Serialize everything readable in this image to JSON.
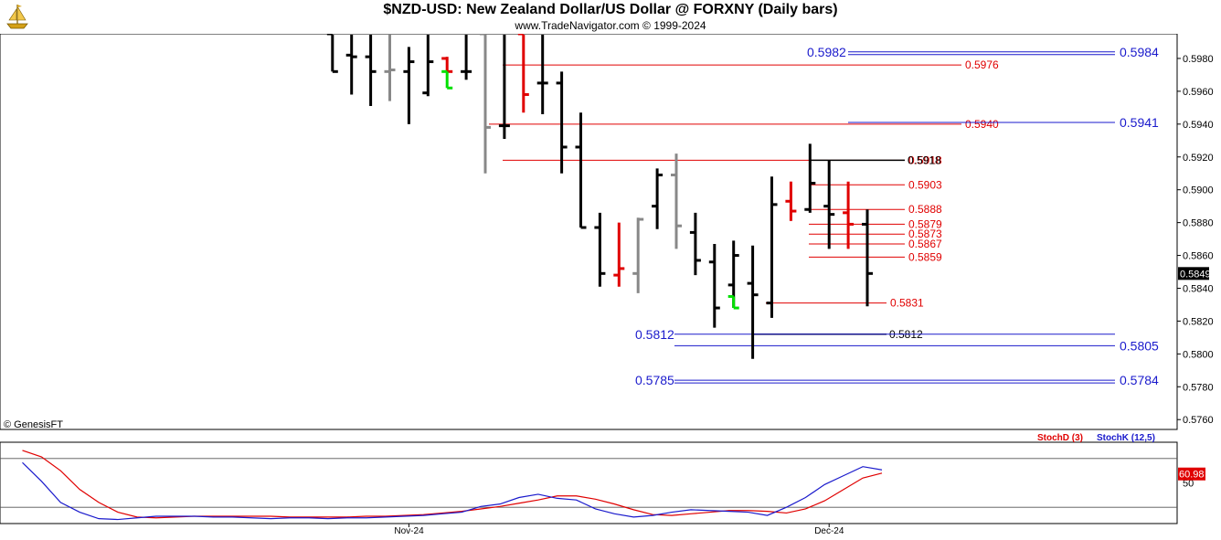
{
  "header": {
    "title": "$NZD-USD:  New Zealand Dollar/US Dollar @ FORXNY  (Daily bars)",
    "subtitle": "www.TradeNavigator.com © 1999-2024",
    "logo_icon": "sailing-ship-icon"
  },
  "footer": {
    "copyright": "© GenesisFT"
  },
  "colors": {
    "bar_default": "#000000",
    "bar_down": "#e00000",
    "bar_up": "#00e000",
    "bar_neutral": "#888888",
    "red_level": "#e00000",
    "blue_level": "#1a1acc",
    "stoch_d": "#e00000",
    "stoch_k": "#1a1acc"
  },
  "chart_data": [
    {
      "type": "ohlc",
      "ylim": [
        0.5754,
        0.5995
      ],
      "yticks": [
        "0.5980",
        "0.5960",
        "0.5940",
        "0.5920",
        "0.5900",
        "0.5880",
        "0.5860",
        "0.5840",
        "0.5820",
        "0.5800",
        "0.5780",
        "0.5760"
      ],
      "ytick_values": [
        0.598,
        0.596,
        0.594,
        0.592,
        0.59,
        0.588,
        0.586,
        0.584,
        0.582,
        0.58,
        0.578,
        0.576
      ],
      "last_price": "0.5849",
      "last_price_value": 0.5849,
      "xlim": [
        0,
        62
      ],
      "bars": [
        {
          "x": 17,
          "o": 0.5995,
          "h": 0.5995,
          "l": 0.5972,
          "c": 0.5972,
          "color": "black"
        },
        {
          "x": 18,
          "o": 0.5982,
          "h": 0.5995,
          "l": 0.5958,
          "c": 0.5981,
          "color": "black"
        },
        {
          "x": 19,
          "o": 0.5981,
          "h": 0.5995,
          "l": 0.5951,
          "c": 0.5972,
          "color": "black"
        },
        {
          "x": 20,
          "o": 0.5972,
          "h": 0.5995,
          "l": 0.5954,
          "c": 0.5973,
          "color": "gray"
        },
        {
          "x": 21,
          "o": 0.5972,
          "h": 0.5987,
          "l": 0.594,
          "c": 0.5978,
          "color": "black"
        },
        {
          "x": 22,
          "o": 0.5959,
          "h": 0.5995,
          "l": 0.5957,
          "c": 0.5978,
          "color": "black"
        },
        {
          "x": 23,
          "o": 0.598,
          "h": 0.5981,
          "l": 0.5972,
          "c": 0.5972,
          "color": "red"
        },
        {
          "x": 23,
          "o": 0.5972,
          "h": 0.5972,
          "l": 0.5962,
          "c": 0.5962,
          "color": "green"
        },
        {
          "x": 24,
          "o": 0.5972,
          "h": 0.5995,
          "l": 0.5967,
          "c": 0.5972,
          "color": "black"
        },
        {
          "x": 25,
          "o": 0.5995,
          "h": 0.5995,
          "l": 0.591,
          "c": 0.5938,
          "color": "gray"
        },
        {
          "x": 26,
          "o": 0.5939,
          "h": 0.5995,
          "l": 0.5931,
          "c": 0.5939,
          "color": "black"
        },
        {
          "x": 27,
          "o": 0.5995,
          "h": 0.5995,
          "l": 0.5947,
          "c": 0.5958,
          "color": "red"
        },
        {
          "x": 28,
          "o": 0.5965,
          "h": 0.5995,
          "l": 0.5946,
          "c": 0.5965,
          "color": "black"
        },
        {
          "x": 29,
          "o": 0.5965,
          "h": 0.5972,
          "l": 0.591,
          "c": 0.5926,
          "color": "black"
        },
        {
          "x": 30,
          "o": 0.5926,
          "h": 0.5947,
          "l": 0.5878,
          "c": 0.5877,
          "color": "black"
        },
        {
          "x": 31,
          "o": 0.5877,
          "h": 0.5886,
          "l": 0.5841,
          "c": 0.5849,
          "color": "black"
        },
        {
          "x": 32,
          "o": 0.5848,
          "h": 0.588,
          "l": 0.5841,
          "c": 0.5852,
          "color": "red"
        },
        {
          "x": 33,
          "o": 0.5849,
          "h": 0.5883,
          "l": 0.5837,
          "c": 0.5882,
          "color": "gray"
        },
        {
          "x": 34,
          "o": 0.589,
          "h": 0.5913,
          "l": 0.5876,
          "c": 0.5909,
          "color": "black"
        },
        {
          "x": 35,
          "o": 0.5909,
          "h": 0.5922,
          "l": 0.5864,
          "c": 0.5878,
          "color": "gray"
        },
        {
          "x": 36,
          "o": 0.5874,
          "h": 0.5886,
          "l": 0.5848,
          "c": 0.5857,
          "color": "black"
        },
        {
          "x": 37,
          "o": 0.5856,
          "h": 0.5867,
          "l": 0.5816,
          "c": 0.5828,
          "color": "black"
        },
        {
          "x": 38,
          "o": 0.5842,
          "h": 0.5869,
          "l": 0.5828,
          "c": 0.586,
          "color": "black"
        },
        {
          "x": 38,
          "o": 0.5835,
          "h": 0.5835,
          "l": 0.5828,
          "c": 0.5828,
          "color": "green"
        },
        {
          "x": 39,
          "o": 0.5843,
          "h": 0.5866,
          "l": 0.5797,
          "c": 0.5836,
          "color": "black"
        },
        {
          "x": 40,
          "o": 0.5831,
          "h": 0.5908,
          "l": 0.5822,
          "c": 0.5891,
          "color": "black"
        },
        {
          "x": 41,
          "o": 0.5893,
          "h": 0.5905,
          "l": 0.5881,
          "c": 0.5887,
          "color": "red"
        },
        {
          "x": 42,
          "o": 0.5888,
          "h": 0.5928,
          "l": 0.5886,
          "c": 0.5904,
          "color": "black"
        },
        {
          "x": 43,
          "o": 0.589,
          "h": 0.5918,
          "l": 0.5864,
          "c": 0.5885,
          "color": "black"
        },
        {
          "x": 44,
          "o": 0.5886,
          "h": 0.5905,
          "l": 0.5864,
          "c": 0.5879,
          "color": "red"
        },
        {
          "x": 45,
          "o": 0.5879,
          "h": 0.5888,
          "l": 0.5829,
          "c": 0.5849,
          "color": "black"
        }
      ],
      "levels_red": [
        {
          "value": 0.5976,
          "label": "0.5976"
        },
        {
          "value": 0.594,
          "label": "0.5940"
        },
        {
          "value": 0.5918,
          "label": "0.5918"
        },
        {
          "value": 0.5903,
          "label": "0.5903"
        },
        {
          "value": 0.5888,
          "label": "0.5888"
        },
        {
          "value": 0.5879,
          "label": "0.5879"
        },
        {
          "value": 0.5873,
          "label": "0.5873"
        },
        {
          "value": 0.5867,
          "label": "0.5867"
        },
        {
          "value": 0.5859,
          "label": "0.5859"
        },
        {
          "value": 0.5831,
          "label": "0.5831"
        }
      ],
      "levels_black": [
        {
          "value": 0.5918,
          "label": "0.5918"
        },
        {
          "value": 0.5812,
          "label": "0.5812"
        }
      ],
      "levels_blue": [
        {
          "value": 0.5984,
          "label": "0.5984",
          "left_label": "0.5982"
        },
        {
          "value": 0.5941,
          "label": "0.5941"
        },
        {
          "value": 0.5812,
          "label": "",
          "left_label": "0.5812"
        },
        {
          "value": 0.5805,
          "label": "0.5805"
        },
        {
          "value": 0.5784,
          "label": "0.5784",
          "left_label": "0.5785"
        }
      ]
    },
    {
      "type": "line",
      "ylim": [
        0,
        100
      ],
      "ytick_labels": [
        "50"
      ],
      "ytick_values": [
        50
      ],
      "guide_lines": [
        80,
        20
      ],
      "last_value_label": "60.98",
      "last_value": 60.98,
      "x_labels": [
        {
          "x": 21,
          "label": "Nov-24"
        },
        {
          "x": 43,
          "label": "Dec-24"
        }
      ],
      "series": [
        {
          "name": "StochD (3)",
          "color": "red",
          "x": [
            0,
            1,
            2,
            3,
            4,
            5,
            6,
            7,
            8,
            9,
            10,
            11,
            12,
            13,
            14,
            15,
            16,
            17,
            18,
            19,
            20,
            21,
            22,
            23,
            24,
            25,
            26,
            27,
            28,
            29,
            30,
            31,
            32,
            33,
            34,
            35,
            36,
            37,
            38,
            39,
            40,
            41,
            42,
            43,
            44,
            45
          ],
          "values": [
            90,
            82,
            65,
            42,
            26,
            14,
            8,
            7,
            8,
            9,
            9,
            9,
            9,
            9,
            8,
            8,
            8,
            8,
            9,
            9,
            10,
            11,
            13,
            15,
            18,
            21,
            25,
            29,
            34,
            34,
            30,
            24,
            17,
            11,
            10,
            12,
            14,
            16,
            16,
            15,
            13,
            18,
            28,
            42,
            56,
            62
          ]
        },
        {
          "name": "StochK (12,5)",
          "color": "blue",
          "x": [
            0,
            1,
            2,
            3,
            4,
            5,
            6,
            7,
            8,
            9,
            10,
            11,
            12,
            13,
            14,
            15,
            16,
            17,
            18,
            19,
            20,
            21,
            22,
            23,
            24,
            25,
            26,
            27,
            28,
            29,
            30,
            31,
            32,
            33,
            34,
            35,
            36,
            37,
            38,
            39,
            40,
            41,
            42,
            43,
            44,
            45
          ],
          "values": [
            75,
            52,
            26,
            14,
            6,
            5,
            7,
            9,
            9,
            9,
            8,
            8,
            7,
            6,
            7,
            7,
            6,
            7,
            7,
            8,
            9,
            10,
            12,
            14,
            21,
            24,
            32,
            36,
            31,
            29,
            18,
            12,
            8,
            10,
            14,
            17,
            16,
            15,
            14,
            10,
            20,
            32,
            48,
            59,
            70,
            66
          ]
        }
      ]
    }
  ]
}
